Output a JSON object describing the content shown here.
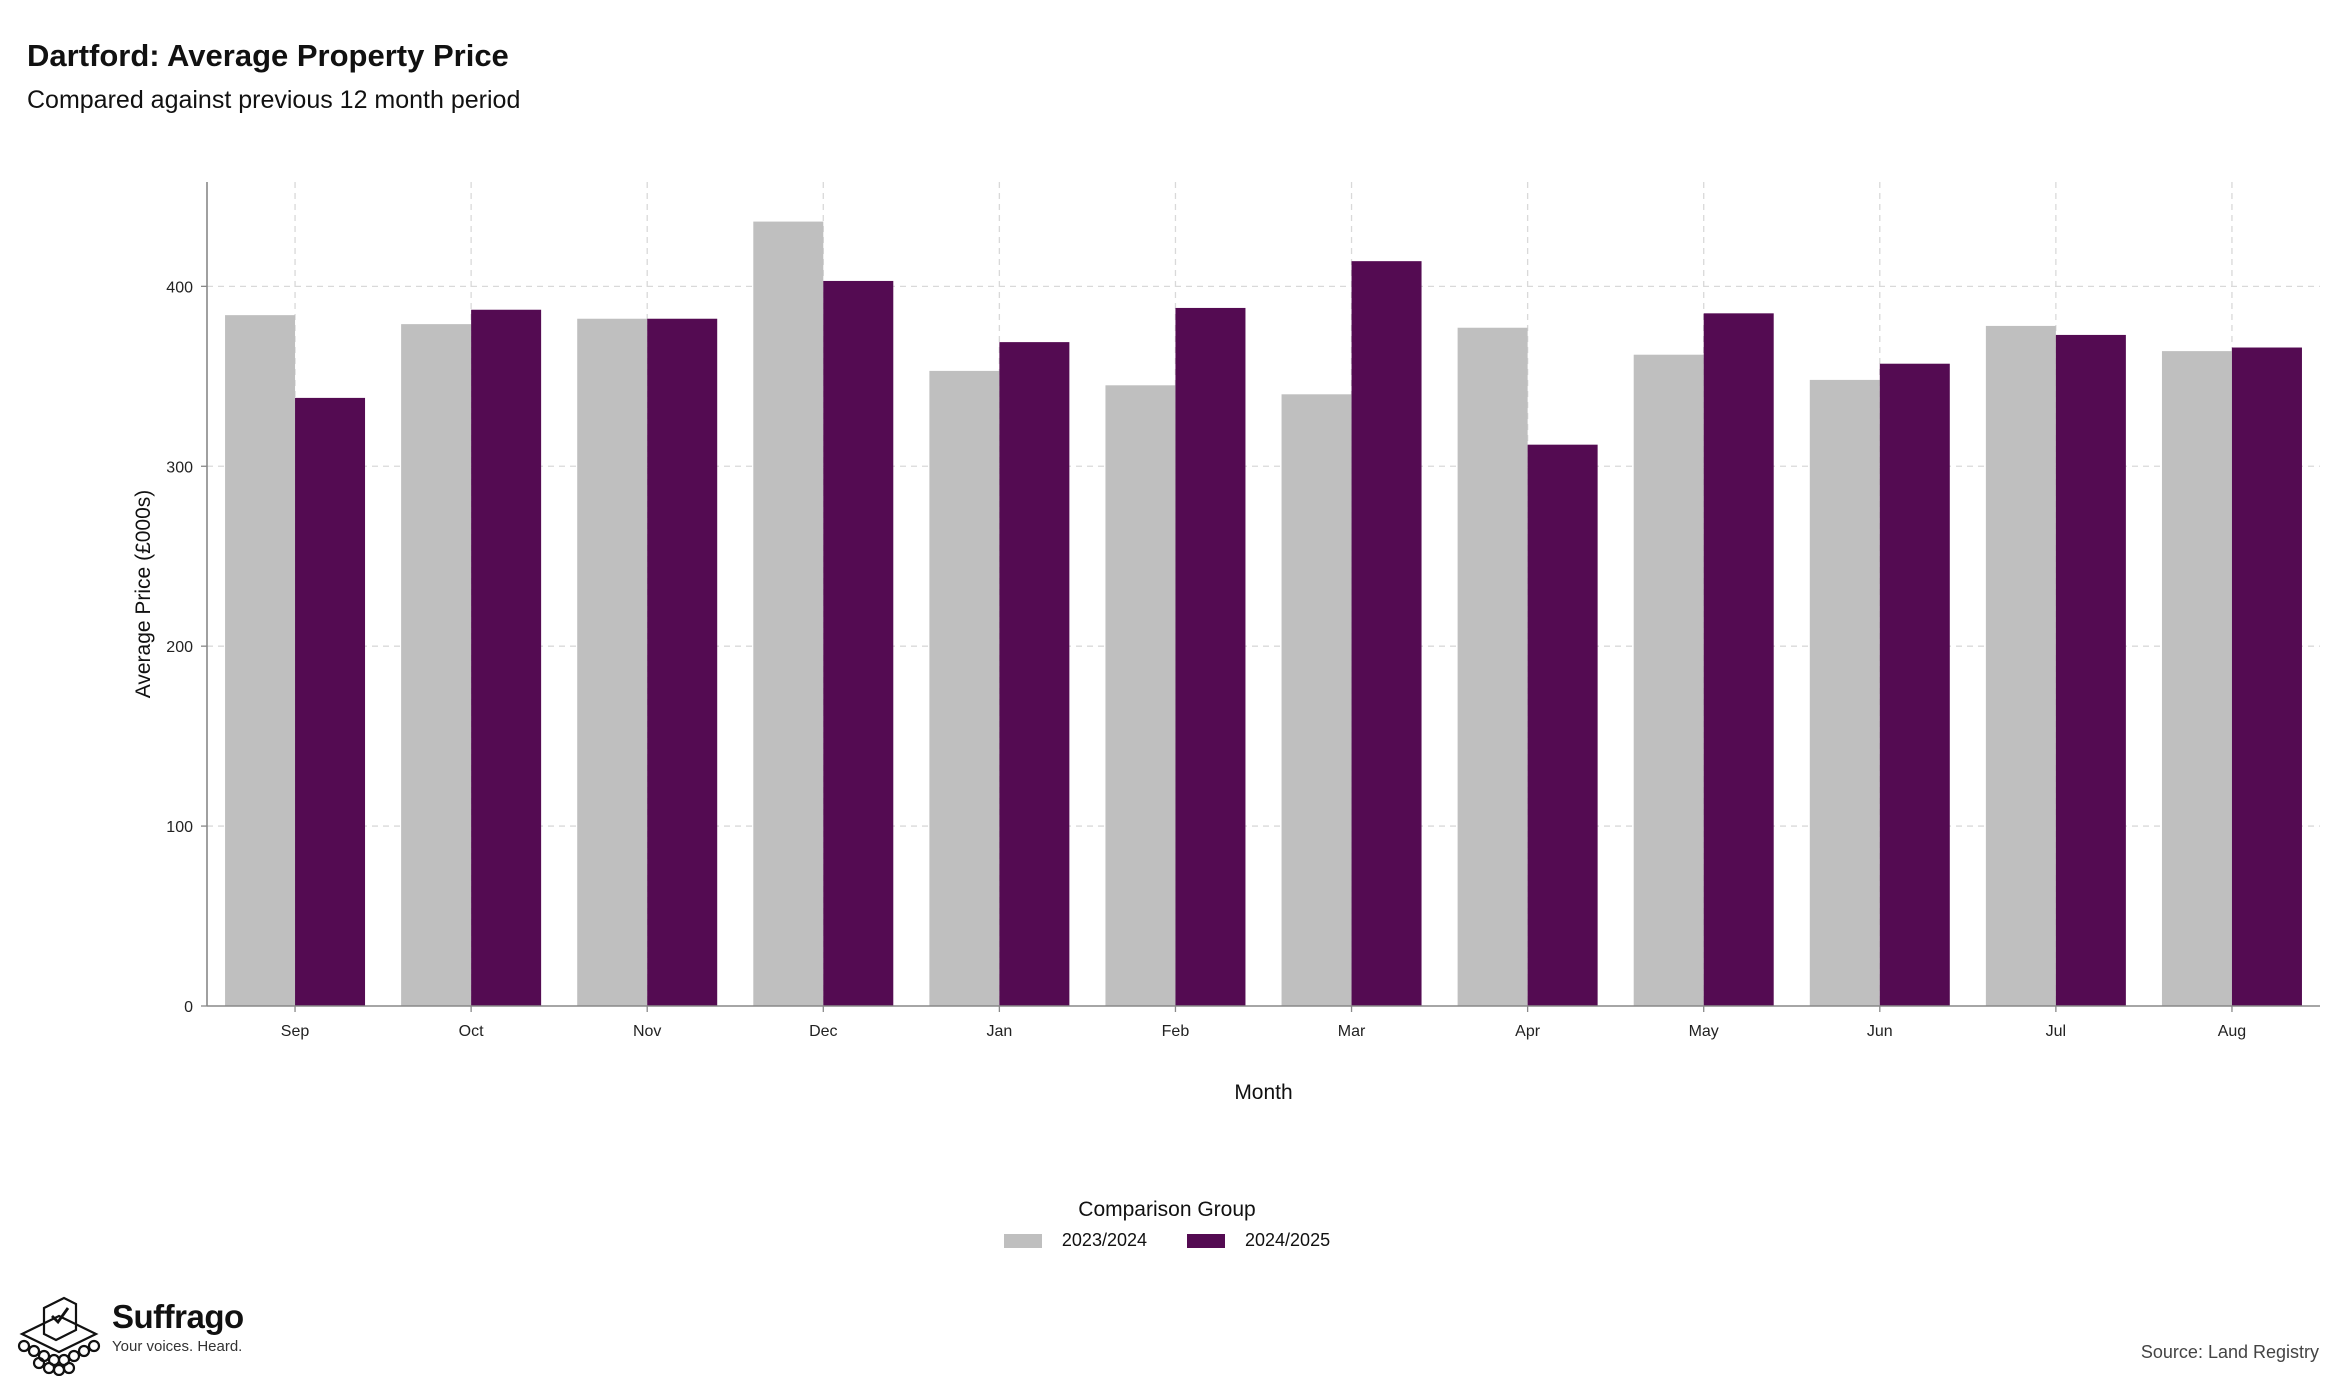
{
  "header": {
    "title": "Dartford: Average Property Price",
    "subtitle": "Compared against previous 12 month period"
  },
  "legend": {
    "title": "Comparison Group",
    "items": [
      {
        "label": "2023/2024",
        "color": "#bfbfbf"
      },
      {
        "label": "2024/2025",
        "color": "#540b52"
      }
    ]
  },
  "footer": {
    "brand": "Suffrago",
    "tagline": "Your voices. Heard.",
    "source": "Source: Land Registry"
  },
  "chart_data": {
    "type": "bar",
    "xlabel": "Month",
    "ylabel": "Average Price (£000s)",
    "ylim": [
      0,
      458
    ],
    "yticks": [
      0,
      100,
      200,
      300,
      400
    ],
    "grid": true,
    "categories": [
      "Sep",
      "Oct",
      "Nov",
      "Dec",
      "Jan",
      "Feb",
      "Mar",
      "Apr",
      "May",
      "Jun",
      "Jul",
      "Aug"
    ],
    "series": [
      {
        "name": "2023/2024",
        "color": "#bfbfbf",
        "values": [
          384,
          379,
          382,
          436,
          353,
          345,
          340,
          377,
          362,
          348,
          378,
          364
        ]
      },
      {
        "name": "2024/2025",
        "color": "#540b52",
        "values": [
          338,
          387,
          382,
          403,
          369,
          388,
          414,
          312,
          385,
          357,
          373,
          366
        ]
      }
    ],
    "legend_position": "bottom"
  }
}
